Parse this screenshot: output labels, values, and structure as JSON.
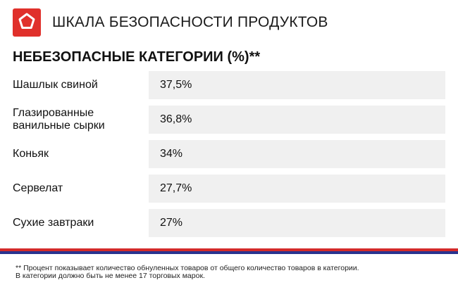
{
  "header": {
    "title": "ШКАЛА БЕЗОПАСНОСТИ ПРОДУКТОВ",
    "logo_icon": "pentagon-icon",
    "brand_color": "#e0302b"
  },
  "section": {
    "title": "НЕБЕЗОПАСНЫЕ КАТЕГОРИИ (%)**"
  },
  "table": {
    "rows": [
      {
        "category": "Шашлык свиной",
        "value": "37,5%"
      },
      {
        "category_line1": "Глазированные",
        "category_line2": "ванильные сырки",
        "value": "36,8%"
      },
      {
        "category": "Коньяк",
        "value": "34%"
      },
      {
        "category": "Сервелат",
        "value": "27,7%"
      },
      {
        "category": "Сухие завтраки",
        "value": "27%"
      }
    ]
  },
  "footer": {
    "line1": "** Процент показывает количество обнуленных товаров от общего количество товаров в категории.",
    "line2": "В категории должно быть не менее 17 торговых марок.",
    "accent_red": "#d42a2a",
    "accent_blue": "#29338f"
  }
}
